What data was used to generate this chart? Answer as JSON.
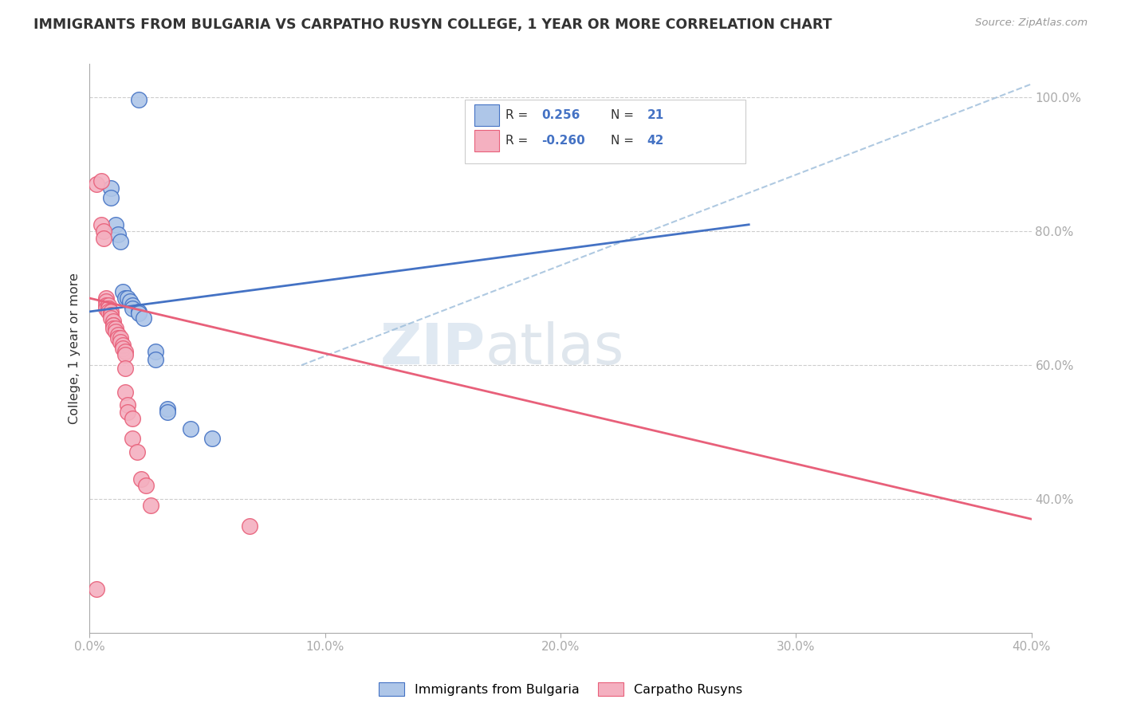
{
  "title": "IMMIGRANTS FROM BULGARIA VS CARPATHO RUSYN COLLEGE, 1 YEAR OR MORE CORRELATION CHART",
  "source_text": "Source: ZipAtlas.com",
  "ylabel": "College, 1 year or more",
  "xlim": [
    0.0,
    0.4
  ],
  "ylim": [
    0.2,
    1.05
  ],
  "x_ticks": [
    0.0,
    0.1,
    0.2,
    0.3,
    0.4
  ],
  "x_tick_labels": [
    "0.0%",
    "10.0%",
    "20.0%",
    "30.0%",
    "40.0%"
  ],
  "y_ticks": [
    0.4,
    0.6,
    0.8,
    1.0
  ],
  "y_tick_labels": [
    "40.0%",
    "60.0%",
    "80.0%",
    "100.0%"
  ],
  "blue_R": 0.256,
  "blue_N": 21,
  "pink_R": -0.26,
  "pink_N": 42,
  "legend_labels": [
    "Immigrants from Bulgaria",
    "Carpatho Rusyns"
  ],
  "blue_color": "#aec6e8",
  "pink_color": "#f4b0c0",
  "blue_line_color": "#4472c4",
  "pink_line_color": "#e8607a",
  "dashed_line_color": "#9bbcda",
  "watermark_zip": "ZIP",
  "watermark_atlas": "atlas",
  "blue_scatter_x": [
    0.021,
    0.009,
    0.009,
    0.011,
    0.012,
    0.013,
    0.014,
    0.015,
    0.016,
    0.017,
    0.018,
    0.018,
    0.021,
    0.021,
    0.023,
    0.028,
    0.028,
    0.033,
    0.033,
    0.043,
    0.052
  ],
  "blue_scatter_y": [
    0.997,
    0.865,
    0.85,
    0.81,
    0.795,
    0.785,
    0.71,
    0.7,
    0.7,
    0.695,
    0.69,
    0.685,
    0.68,
    0.678,
    0.67,
    0.62,
    0.608,
    0.535,
    0.53,
    0.505,
    0.49
  ],
  "pink_scatter_x": [
    0.003,
    0.005,
    0.005,
    0.006,
    0.006,
    0.007,
    0.007,
    0.007,
    0.007,
    0.008,
    0.008,
    0.008,
    0.008,
    0.009,
    0.009,
    0.009,
    0.01,
    0.01,
    0.01,
    0.01,
    0.011,
    0.011,
    0.012,
    0.012,
    0.013,
    0.013,
    0.014,
    0.014,
    0.015,
    0.015,
    0.015,
    0.015,
    0.016,
    0.016,
    0.018,
    0.018,
    0.02,
    0.022,
    0.024,
    0.026,
    0.068,
    0.003
  ],
  "pink_scatter_y": [
    0.87,
    0.875,
    0.81,
    0.8,
    0.79,
    0.7,
    0.695,
    0.69,
    0.685,
    0.69,
    0.685,
    0.685,
    0.68,
    0.68,
    0.675,
    0.67,
    0.665,
    0.66,
    0.66,
    0.655,
    0.655,
    0.65,
    0.645,
    0.64,
    0.64,
    0.635,
    0.63,
    0.625,
    0.62,
    0.615,
    0.595,
    0.56,
    0.54,
    0.53,
    0.52,
    0.49,
    0.47,
    0.43,
    0.42,
    0.39,
    0.36,
    0.265
  ],
  "blue_line_x": [
    0.0,
    0.28
  ],
  "blue_line_y": [
    0.68,
    0.81
  ],
  "pink_line_x": [
    0.0,
    0.4
  ],
  "pink_line_y": [
    0.7,
    0.37
  ],
  "dash_line_x": [
    0.09,
    0.4
  ],
  "dash_line_y": [
    0.6,
    1.02
  ]
}
